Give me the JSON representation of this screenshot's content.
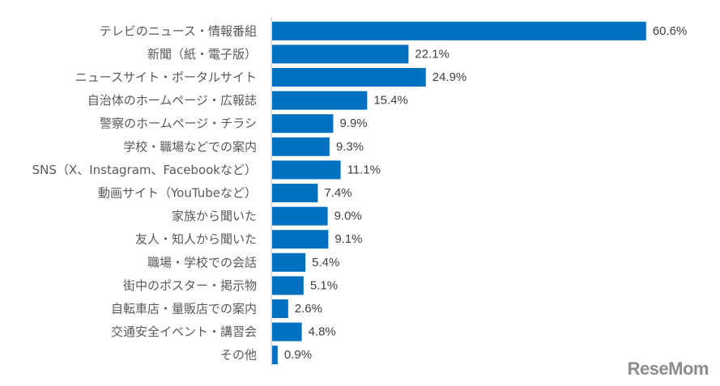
{
  "chart_data": {
    "type": "bar",
    "orientation": "horizontal",
    "categories": [
      "テレビのニュース・情報番組",
      "新聞（紙・電子版）",
      "ニュースサイト・ポータルサイト",
      "自治体のホームページ・広報誌",
      "警察のホームページ・チラシ",
      "学校・職場などでの案内",
      "SNS（X、Instagram、Facebookなど）",
      "動画サイト（YouTubeなど）",
      "家族から聞いた",
      "友人・知人から聞いた",
      "職場・学校での会話",
      "街中のポスター・掲示物",
      "自転車店・量販店での案内",
      "交通安全イベント・講習会",
      "その他"
    ],
    "values": [
      60.6,
      22.1,
      24.9,
      15.4,
      9.9,
      9.3,
      11.1,
      7.4,
      9.0,
      9.1,
      5.4,
      5.1,
      2.6,
      4.8,
      0.9
    ],
    "value_labels": [
      "60.6%",
      "22.1%",
      "24.9%",
      "15.4%",
      "9.9%",
      "9.3%",
      "11.1%",
      "7.4%",
      "9.0%",
      "9.1%",
      "5.4%",
      "5.1%",
      "2.6%",
      "4.8%",
      "0.9%"
    ],
    "xlim": [
      0,
      70
    ],
    "bar_color": "#0070C0",
    "axis_color": "#bfbfbf",
    "grid": false,
    "legend": "none"
  },
  "watermark": "ReseMom"
}
